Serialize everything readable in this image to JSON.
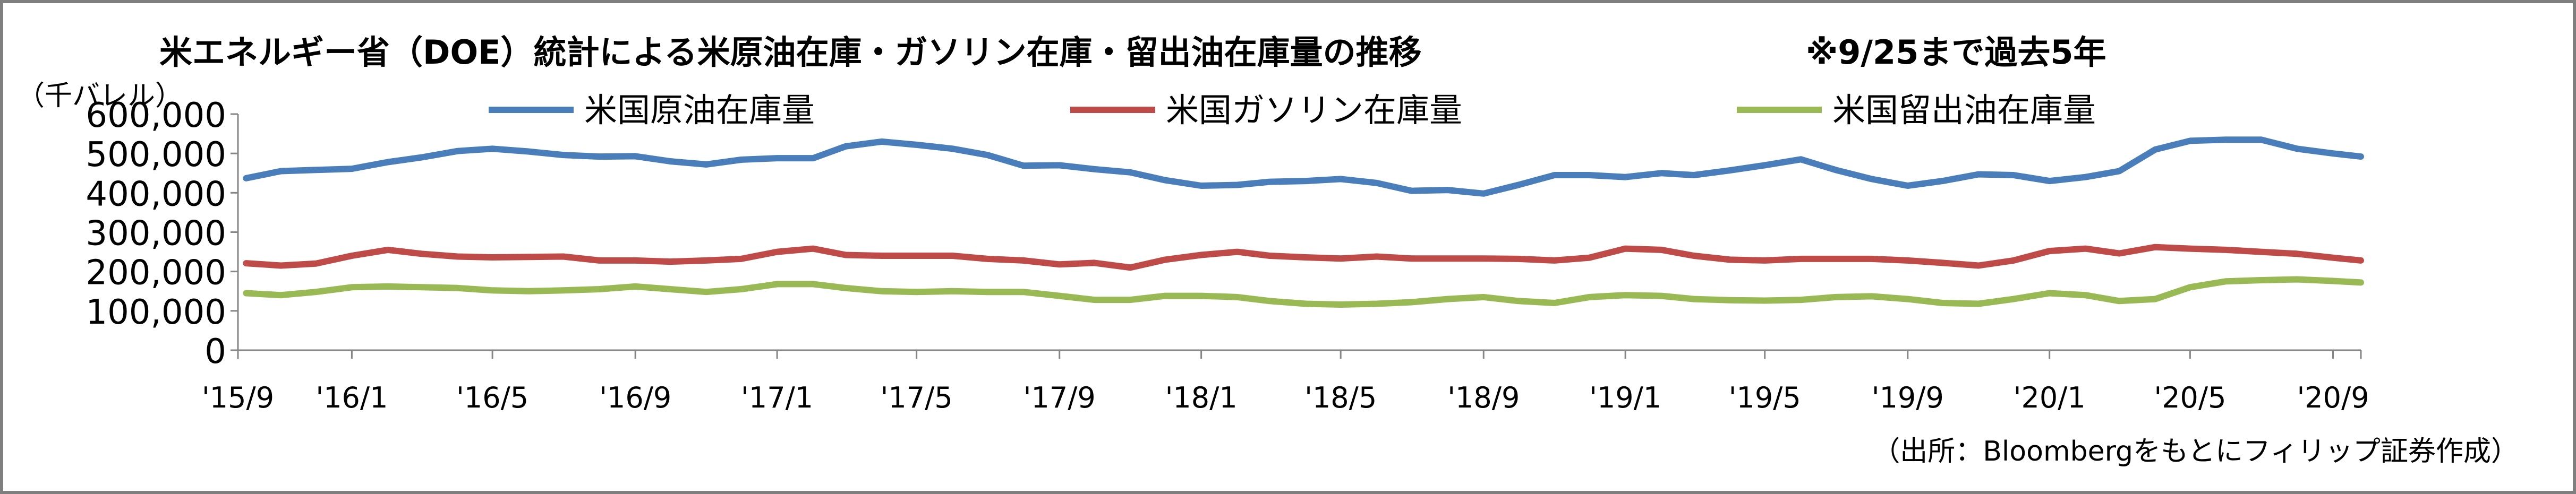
{
  "chart_data": {
    "type": "line",
    "title": "米エネルギー省（DOE）統計による米原油在庫・ガソリン在庫・留出油在庫量の推移",
    "subtitle": "※9/25まで過去5年",
    "ylabel": "（千バレル）",
    "source": "（出所：Bloombergをもとにフィリップ証券作成）",
    "ylim": [
      0,
      600000
    ],
    "yticks": [
      0,
      100000,
      200000,
      300000,
      400000,
      500000,
      600000
    ],
    "ytick_labels": [
      "0",
      "100,000",
      "200,000",
      "300,000",
      "400,000",
      "500,000",
      "600,000"
    ],
    "xlim": [
      "2015-09-25",
      "2020-09-25"
    ],
    "x_tick_labels": [
      {
        "date": "2015-09-25",
        "label": "'15/9"
      },
      {
        "date": "2016-01-01",
        "label": "'16/1"
      },
      {
        "date": "2016-05-01",
        "label": "'16/5"
      },
      {
        "date": "2016-09-01",
        "label": "'16/9"
      },
      {
        "date": "2017-01-01",
        "label": "'17/1"
      },
      {
        "date": "2017-05-01",
        "label": "'17/5"
      },
      {
        "date": "2017-09-01",
        "label": "'17/9"
      },
      {
        "date": "2018-01-01",
        "label": "'18/1"
      },
      {
        "date": "2018-05-01",
        "label": "'18/5"
      },
      {
        "date": "2018-09-01",
        "label": "'18/9"
      },
      {
        "date": "2019-01-01",
        "label": "'19/1"
      },
      {
        "date": "2019-05-01",
        "label": "'19/5"
      },
      {
        "date": "2019-09-01",
        "label": "'19/9"
      },
      {
        "date": "2020-01-01",
        "label": "'20/1"
      },
      {
        "date": "2020-05-01",
        "label": "'20/5"
      },
      {
        "date": "2020-09-01",
        "label": "'20/9"
      }
    ],
    "legend_position": "top",
    "grid": false,
    "series": [
      {
        "name": "米国原油在庫量",
        "color": "#4a7ebb",
        "points": [
          [
            "2015-10-02",
            437000
          ],
          [
            "2015-11-01",
            455000
          ],
          [
            "2015-12-01",
            458000
          ],
          [
            "2016-01-01",
            461000
          ],
          [
            "2016-02-01",
            478000
          ],
          [
            "2016-03-01",
            490000
          ],
          [
            "2016-04-01",
            506000
          ],
          [
            "2016-05-01",
            512000
          ],
          [
            "2016-06-01",
            505000
          ],
          [
            "2016-07-01",
            496000
          ],
          [
            "2016-08-01",
            492000
          ],
          [
            "2016-09-01",
            493000
          ],
          [
            "2016-10-01",
            480000
          ],
          [
            "2016-11-01",
            472000
          ],
          [
            "2016-12-01",
            484000
          ],
          [
            "2017-01-01",
            488000
          ],
          [
            "2017-02-01",
            488000
          ],
          [
            "2017-03-01",
            518000
          ],
          [
            "2017-04-01",
            530000
          ],
          [
            "2017-05-01",
            522000
          ],
          [
            "2017-06-01",
            512000
          ],
          [
            "2017-07-01",
            496000
          ],
          [
            "2017-08-01",
            469000
          ],
          [
            "2017-09-01",
            470000
          ],
          [
            "2017-10-01",
            460000
          ],
          [
            "2017-11-01",
            452000
          ],
          [
            "2017-12-01",
            432000
          ],
          [
            "2018-01-01",
            418000
          ],
          [
            "2018-02-01",
            420000
          ],
          [
            "2018-03-01",
            428000
          ],
          [
            "2018-04-01",
            430000
          ],
          [
            "2018-05-01",
            435000
          ],
          [
            "2018-06-01",
            425000
          ],
          [
            "2018-07-01",
            405000
          ],
          [
            "2018-08-01",
            407000
          ],
          [
            "2018-09-01",
            398000
          ],
          [
            "2018-10-01",
            420000
          ],
          [
            "2018-11-01",
            445000
          ],
          [
            "2018-12-01",
            445000
          ],
          [
            "2019-01-01",
            440000
          ],
          [
            "2019-02-01",
            450000
          ],
          [
            "2019-03-01",
            445000
          ],
          [
            "2019-04-01",
            457000
          ],
          [
            "2019-05-01",
            470000
          ],
          [
            "2019-06-01",
            485000
          ],
          [
            "2019-07-01",
            458000
          ],
          [
            "2019-08-01",
            435000
          ],
          [
            "2019-09-01",
            418000
          ],
          [
            "2019-10-01",
            430000
          ],
          [
            "2019-11-01",
            447000
          ],
          [
            "2019-12-01",
            445000
          ],
          [
            "2020-01-01",
            430000
          ],
          [
            "2020-02-01",
            440000
          ],
          [
            "2020-03-01",
            455000
          ],
          [
            "2020-04-01",
            510000
          ],
          [
            "2020-05-01",
            532000
          ],
          [
            "2020-06-01",
            535000
          ],
          [
            "2020-07-01",
            535000
          ],
          [
            "2020-08-01",
            512000
          ],
          [
            "2020-09-01",
            500000
          ],
          [
            "2020-09-25",
            492000
          ]
        ]
      },
      {
        "name": "米国ガソリン在庫量",
        "color": "#be4b48",
        "points": [
          [
            "2015-10-02",
            221000
          ],
          [
            "2015-11-01",
            215000
          ],
          [
            "2015-12-01",
            220000
          ],
          [
            "2016-01-01",
            240000
          ],
          [
            "2016-02-01",
            255000
          ],
          [
            "2016-03-01",
            245000
          ],
          [
            "2016-04-01",
            238000
          ],
          [
            "2016-05-01",
            236000
          ],
          [
            "2016-06-01",
            237000
          ],
          [
            "2016-07-01",
            238000
          ],
          [
            "2016-08-01",
            228000
          ],
          [
            "2016-09-01",
            228000
          ],
          [
            "2016-10-01",
            225000
          ],
          [
            "2016-11-01",
            228000
          ],
          [
            "2016-12-01",
            232000
          ],
          [
            "2017-01-01",
            250000
          ],
          [
            "2017-02-01",
            258000
          ],
          [
            "2017-03-01",
            242000
          ],
          [
            "2017-04-01",
            240000
          ],
          [
            "2017-05-01",
            240000
          ],
          [
            "2017-06-01",
            240000
          ],
          [
            "2017-07-01",
            232000
          ],
          [
            "2017-08-01",
            228000
          ],
          [
            "2017-09-01",
            218000
          ],
          [
            "2017-10-01",
            222000
          ],
          [
            "2017-11-01",
            210000
          ],
          [
            "2017-12-01",
            230000
          ],
          [
            "2018-01-01",
            242000
          ],
          [
            "2018-02-01",
            250000
          ],
          [
            "2018-03-01",
            240000
          ],
          [
            "2018-04-01",
            236000
          ],
          [
            "2018-05-01",
            233000
          ],
          [
            "2018-06-01",
            238000
          ],
          [
            "2018-07-01",
            233000
          ],
          [
            "2018-08-01",
            233000
          ],
          [
            "2018-09-01",
            233000
          ],
          [
            "2018-10-01",
            232000
          ],
          [
            "2018-11-01",
            228000
          ],
          [
            "2018-12-01",
            235000
          ],
          [
            "2019-01-01",
            258000
          ],
          [
            "2019-02-01",
            255000
          ],
          [
            "2019-03-01",
            240000
          ],
          [
            "2019-04-01",
            230000
          ],
          [
            "2019-05-01",
            228000
          ],
          [
            "2019-06-01",
            232000
          ],
          [
            "2019-07-01",
            232000
          ],
          [
            "2019-08-01",
            232000
          ],
          [
            "2019-09-01",
            228000
          ],
          [
            "2019-10-01",
            222000
          ],
          [
            "2019-11-01",
            215000
          ],
          [
            "2019-12-01",
            228000
          ],
          [
            "2020-01-01",
            252000
          ],
          [
            "2020-02-01",
            258000
          ],
          [
            "2020-03-01",
            246000
          ],
          [
            "2020-04-01",
            262000
          ],
          [
            "2020-05-01",
            258000
          ],
          [
            "2020-06-01",
            255000
          ],
          [
            "2020-07-01",
            250000
          ],
          [
            "2020-08-01",
            245000
          ],
          [
            "2020-09-01",
            235000
          ],
          [
            "2020-09-25",
            228000
          ]
        ]
      },
      {
        "name": "米国留出油在庫量",
        "color": "#98b954",
        "points": [
          [
            "2015-10-02",
            145000
          ],
          [
            "2015-11-01",
            140000
          ],
          [
            "2015-12-01",
            148000
          ],
          [
            "2016-01-01",
            160000
          ],
          [
            "2016-02-01",
            162000
          ],
          [
            "2016-03-01",
            160000
          ],
          [
            "2016-04-01",
            158000
          ],
          [
            "2016-05-01",
            152000
          ],
          [
            "2016-06-01",
            150000
          ],
          [
            "2016-07-01",
            152000
          ],
          [
            "2016-08-01",
            155000
          ],
          [
            "2016-09-01",
            162000
          ],
          [
            "2016-10-01",
            155000
          ],
          [
            "2016-11-01",
            148000
          ],
          [
            "2016-12-01",
            155000
          ],
          [
            "2017-01-01",
            168000
          ],
          [
            "2017-02-01",
            168000
          ],
          [
            "2017-03-01",
            158000
          ],
          [
            "2017-04-01",
            150000
          ],
          [
            "2017-05-01",
            148000
          ],
          [
            "2017-06-01",
            150000
          ],
          [
            "2017-07-01",
            148000
          ],
          [
            "2017-08-01",
            148000
          ],
          [
            "2017-09-01",
            138000
          ],
          [
            "2017-10-01",
            128000
          ],
          [
            "2017-11-01",
            128000
          ],
          [
            "2017-12-01",
            138000
          ],
          [
            "2018-01-01",
            138000
          ],
          [
            "2018-02-01",
            135000
          ],
          [
            "2018-03-01",
            125000
          ],
          [
            "2018-04-01",
            118000
          ],
          [
            "2018-05-01",
            116000
          ],
          [
            "2018-06-01",
            118000
          ],
          [
            "2018-07-01",
            122000
          ],
          [
            "2018-08-01",
            130000
          ],
          [
            "2018-09-01",
            135000
          ],
          [
            "2018-10-01",
            125000
          ],
          [
            "2018-11-01",
            120000
          ],
          [
            "2018-12-01",
            135000
          ],
          [
            "2019-01-01",
            140000
          ],
          [
            "2019-02-01",
            138000
          ],
          [
            "2019-03-01",
            130000
          ],
          [
            "2019-04-01",
            127000
          ],
          [
            "2019-05-01",
            126000
          ],
          [
            "2019-06-01",
            128000
          ],
          [
            "2019-07-01",
            135000
          ],
          [
            "2019-08-01",
            137000
          ],
          [
            "2019-09-01",
            130000
          ],
          [
            "2019-10-01",
            120000
          ],
          [
            "2019-11-01",
            118000
          ],
          [
            "2019-12-01",
            130000
          ],
          [
            "2020-01-01",
            145000
          ],
          [
            "2020-02-01",
            140000
          ],
          [
            "2020-03-01",
            125000
          ],
          [
            "2020-04-01",
            130000
          ],
          [
            "2020-05-01",
            160000
          ],
          [
            "2020-06-01",
            175000
          ],
          [
            "2020-07-01",
            178000
          ],
          [
            "2020-08-01",
            180000
          ],
          [
            "2020-09-01",
            176000
          ],
          [
            "2020-09-25",
            172000
          ]
        ]
      }
    ]
  }
}
